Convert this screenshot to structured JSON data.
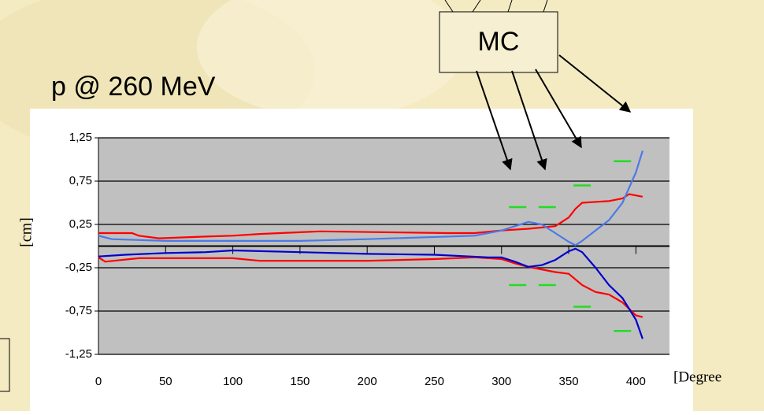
{
  "chart_data": {
    "type": "line",
    "title": "p @ 260 MeV",
    "annotation": "MC",
    "y_label": "[cm]",
    "x_label": "[Degree",
    "xlim": [
      0,
      425
    ],
    "ylim": [
      -1.25,
      1.25
    ],
    "xticks": [
      0,
      50,
      100,
      150,
      200,
      250,
      300,
      350,
      400
    ],
    "yticks": [
      {
        "value": 1.25,
        "label": "1,25"
      },
      {
        "value": 0.75,
        "label": "0,75"
      },
      {
        "value": 0.25,
        "label": "0,25"
      },
      {
        "value": -0.25,
        "label": "-0,25"
      },
      {
        "value": -0.75,
        "label": "-0,75"
      },
      {
        "value": -1.25,
        "label": "-1,25"
      }
    ],
    "grid": true,
    "series": [
      {
        "color": "#ff0000",
        "style": "line",
        "x": [
          0,
          25,
          30,
          45,
          80,
          100,
          120,
          165,
          260,
          280,
          300,
          320,
          340,
          350,
          355,
          360,
          380,
          390,
          395,
          405
        ],
        "values": [
          0.15,
          0.15,
          0.12,
          0.09,
          0.11,
          0.12,
          0.14,
          0.17,
          0.15,
          0.15,
          0.18,
          0.2,
          0.23,
          0.33,
          0.43,
          0.5,
          0.52,
          0.55,
          0.6,
          0.57
        ]
      },
      {
        "color": "#4a7ae8",
        "style": "line",
        "x": [
          0,
          10,
          50,
          150,
          200,
          280,
          300,
          320,
          330,
          340,
          350,
          355,
          360,
          380,
          390,
          400,
          405
        ],
        "values": [
          0.12,
          0.08,
          0.06,
          0.06,
          0.08,
          0.12,
          0.18,
          0.28,
          0.25,
          0.15,
          0.05,
          0.01,
          0.06,
          0.3,
          0.5,
          0.85,
          1.1
        ]
      },
      {
        "color": "#ff0000",
        "style": "line",
        "x": [
          0,
          5,
          30,
          100,
          120,
          200,
          250,
          280,
          300,
          310,
          320,
          340,
          350,
          360,
          370,
          380,
          390,
          400,
          405
        ],
        "values": [
          -0.13,
          -0.18,
          -0.14,
          -0.14,
          -0.17,
          -0.17,
          -0.15,
          -0.13,
          -0.15,
          -0.2,
          -0.24,
          -0.3,
          -0.32,
          -0.45,
          -0.53,
          -0.56,
          -0.65,
          -0.8,
          -0.82
        ]
      },
      {
        "color": "#0000cc",
        "style": "line",
        "x": [
          0,
          20,
          50,
          80,
          100,
          150,
          200,
          250,
          290,
          300,
          310,
          320,
          330,
          340,
          350,
          355,
          360,
          370,
          380,
          390,
          400,
          405
        ],
        "values": [
          -0.12,
          -0.1,
          -0.08,
          -0.07,
          -0.05,
          -0.07,
          -0.09,
          -0.1,
          -0.13,
          -0.13,
          -0.18,
          -0.24,
          -0.22,
          -0.16,
          -0.06,
          -0.03,
          -0.07,
          -0.25,
          -0.45,
          -0.6,
          -0.85,
          -1.07
        ]
      },
      {
        "color": "#22dd22",
        "style": "dash",
        "x": [
          312,
          312,
          334,
          334,
          360,
          360,
          390,
          390
        ],
        "values": [
          0.45,
          -0.45,
          0.45,
          -0.45,
          0.7,
          -0.7,
          0.98,
          -0.98
        ]
      }
    ]
  }
}
